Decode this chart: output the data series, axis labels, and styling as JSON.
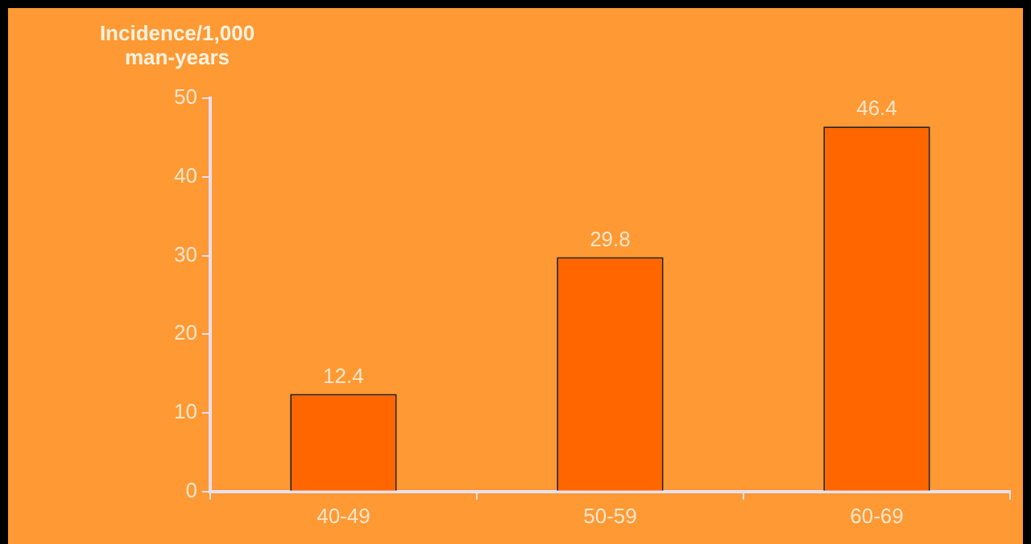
{
  "chart_data": {
    "type": "bar",
    "ylabel": "Incidence/1,000 man-years",
    "categories": [
      "40-49",
      "50-59",
      "60-69"
    ],
    "values": [
      12.4,
      29.8,
      46.4
    ],
    "color": "#ff6600",
    "ylim": [
      0,
      50
    ],
    "yticks": [
      0,
      10,
      20,
      30,
      40,
      50
    ],
    "data_labels": true
  }
}
